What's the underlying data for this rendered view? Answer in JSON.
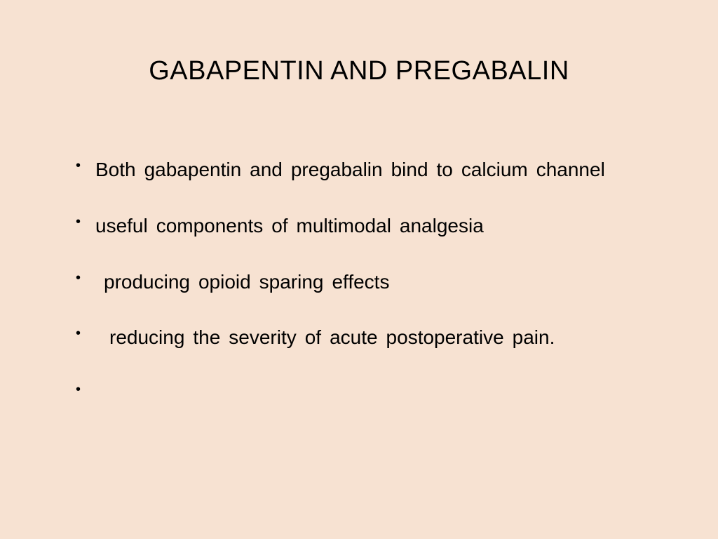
{
  "slide": {
    "title": "GABAPENTIN AND PREGABALIN",
    "bullets": [
      "Both  gabapentin  and  pregabalin  bind  to  calcium channel",
      "useful  components  of  multimodal  analgesia",
      " producing  opioid  sparing  effects",
      "  reducing  the  severity  of  acute  postoperative pain.",
      ""
    ],
    "background_color": "#f7e2d2",
    "text_color": "#000000",
    "title_fontsize": 38,
    "body_fontsize": 28,
    "font_family": "Arial"
  }
}
